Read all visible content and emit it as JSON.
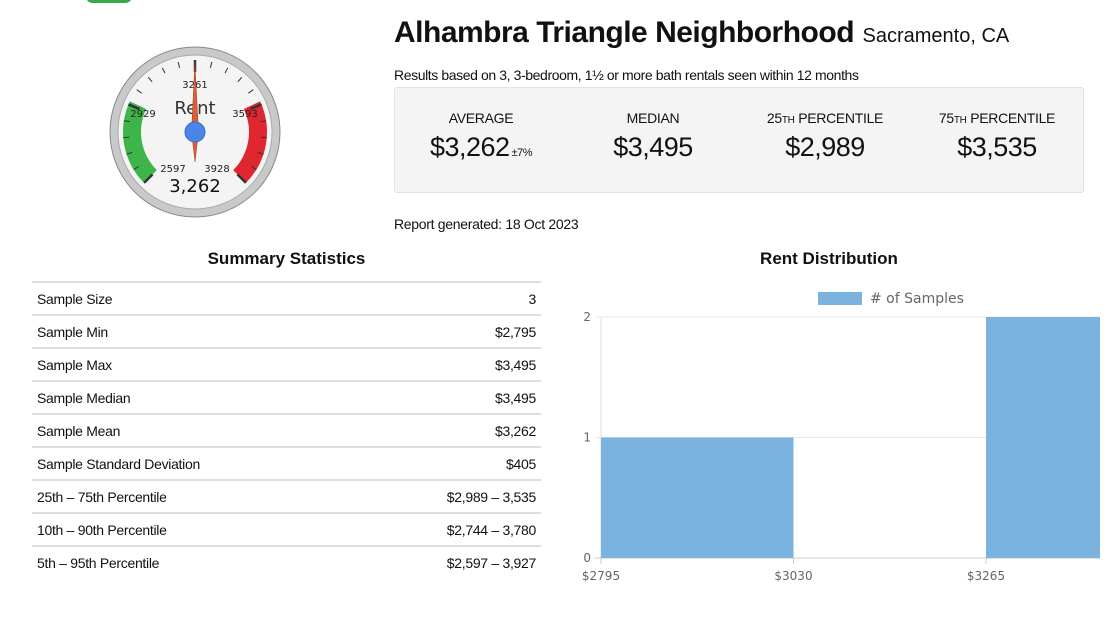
{
  "gauge": {
    "label": "Rent",
    "value": 3262,
    "value_text": "3,262",
    "min": 2597,
    "max": 3928,
    "ticks": [
      "2597",
      "2929",
      "3261",
      "3593",
      "3928"
    ],
    "colors": {
      "low": "#3db54a",
      "high": "#e0262f",
      "needle": "#d9603b",
      "hub": "#4a86e8"
    }
  },
  "header": {
    "title": "Alhambra Triangle Neighborhood",
    "location": "Sacramento, CA",
    "basis": "Results based on 3, 3-bedroom, 1½ or more bath rentals seen within 12 months",
    "report_generated": "Report generated: 18 Oct 2023"
  },
  "stats": [
    {
      "label": "AVERAGE",
      "label_prefix": "",
      "value": "$3,262",
      "extra": "±7%"
    },
    {
      "label": "MEDIAN",
      "label_prefix": "",
      "value": "$3,495",
      "extra": ""
    },
    {
      "label": "PERCENTILE",
      "label_prefix": "25",
      "label_suffix": "TH",
      "value": "$2,989",
      "extra": ""
    },
    {
      "label": "PERCENTILE",
      "label_prefix": "75",
      "label_suffix": "TH",
      "value": "$3,535",
      "extra": ""
    }
  ],
  "summary": {
    "title": "Summary Statistics",
    "rows": [
      [
        "Sample Size",
        "3"
      ],
      [
        "Sample Min",
        "$2,795"
      ],
      [
        "Sample Max",
        "$3,495"
      ],
      [
        "Sample Median",
        "$3,495"
      ],
      [
        "Sample Mean",
        "$3,262"
      ],
      [
        "Sample Standard Deviation",
        "$405"
      ],
      [
        "25th – 75th Percentile",
        "$2,989 – 3,535"
      ],
      [
        "10th – 90th Percentile",
        "$2,744 – 3,780"
      ],
      [
        "5th – 95th Percentile",
        "$2,597 – 3,927"
      ]
    ]
  },
  "chart_data": {
    "type": "bar",
    "title": "Rent Distribution",
    "categories": [
      "$2795",
      "$3030",
      "$3265"
    ],
    "series": [
      {
        "name": "# of Samples",
        "values": [
          1,
          0,
          2
        ],
        "color": "#7ab3e0"
      }
    ],
    "yticks": [
      0,
      1,
      2
    ],
    "ylim": [
      0,
      2
    ],
    "grid": true,
    "legend": "top"
  }
}
